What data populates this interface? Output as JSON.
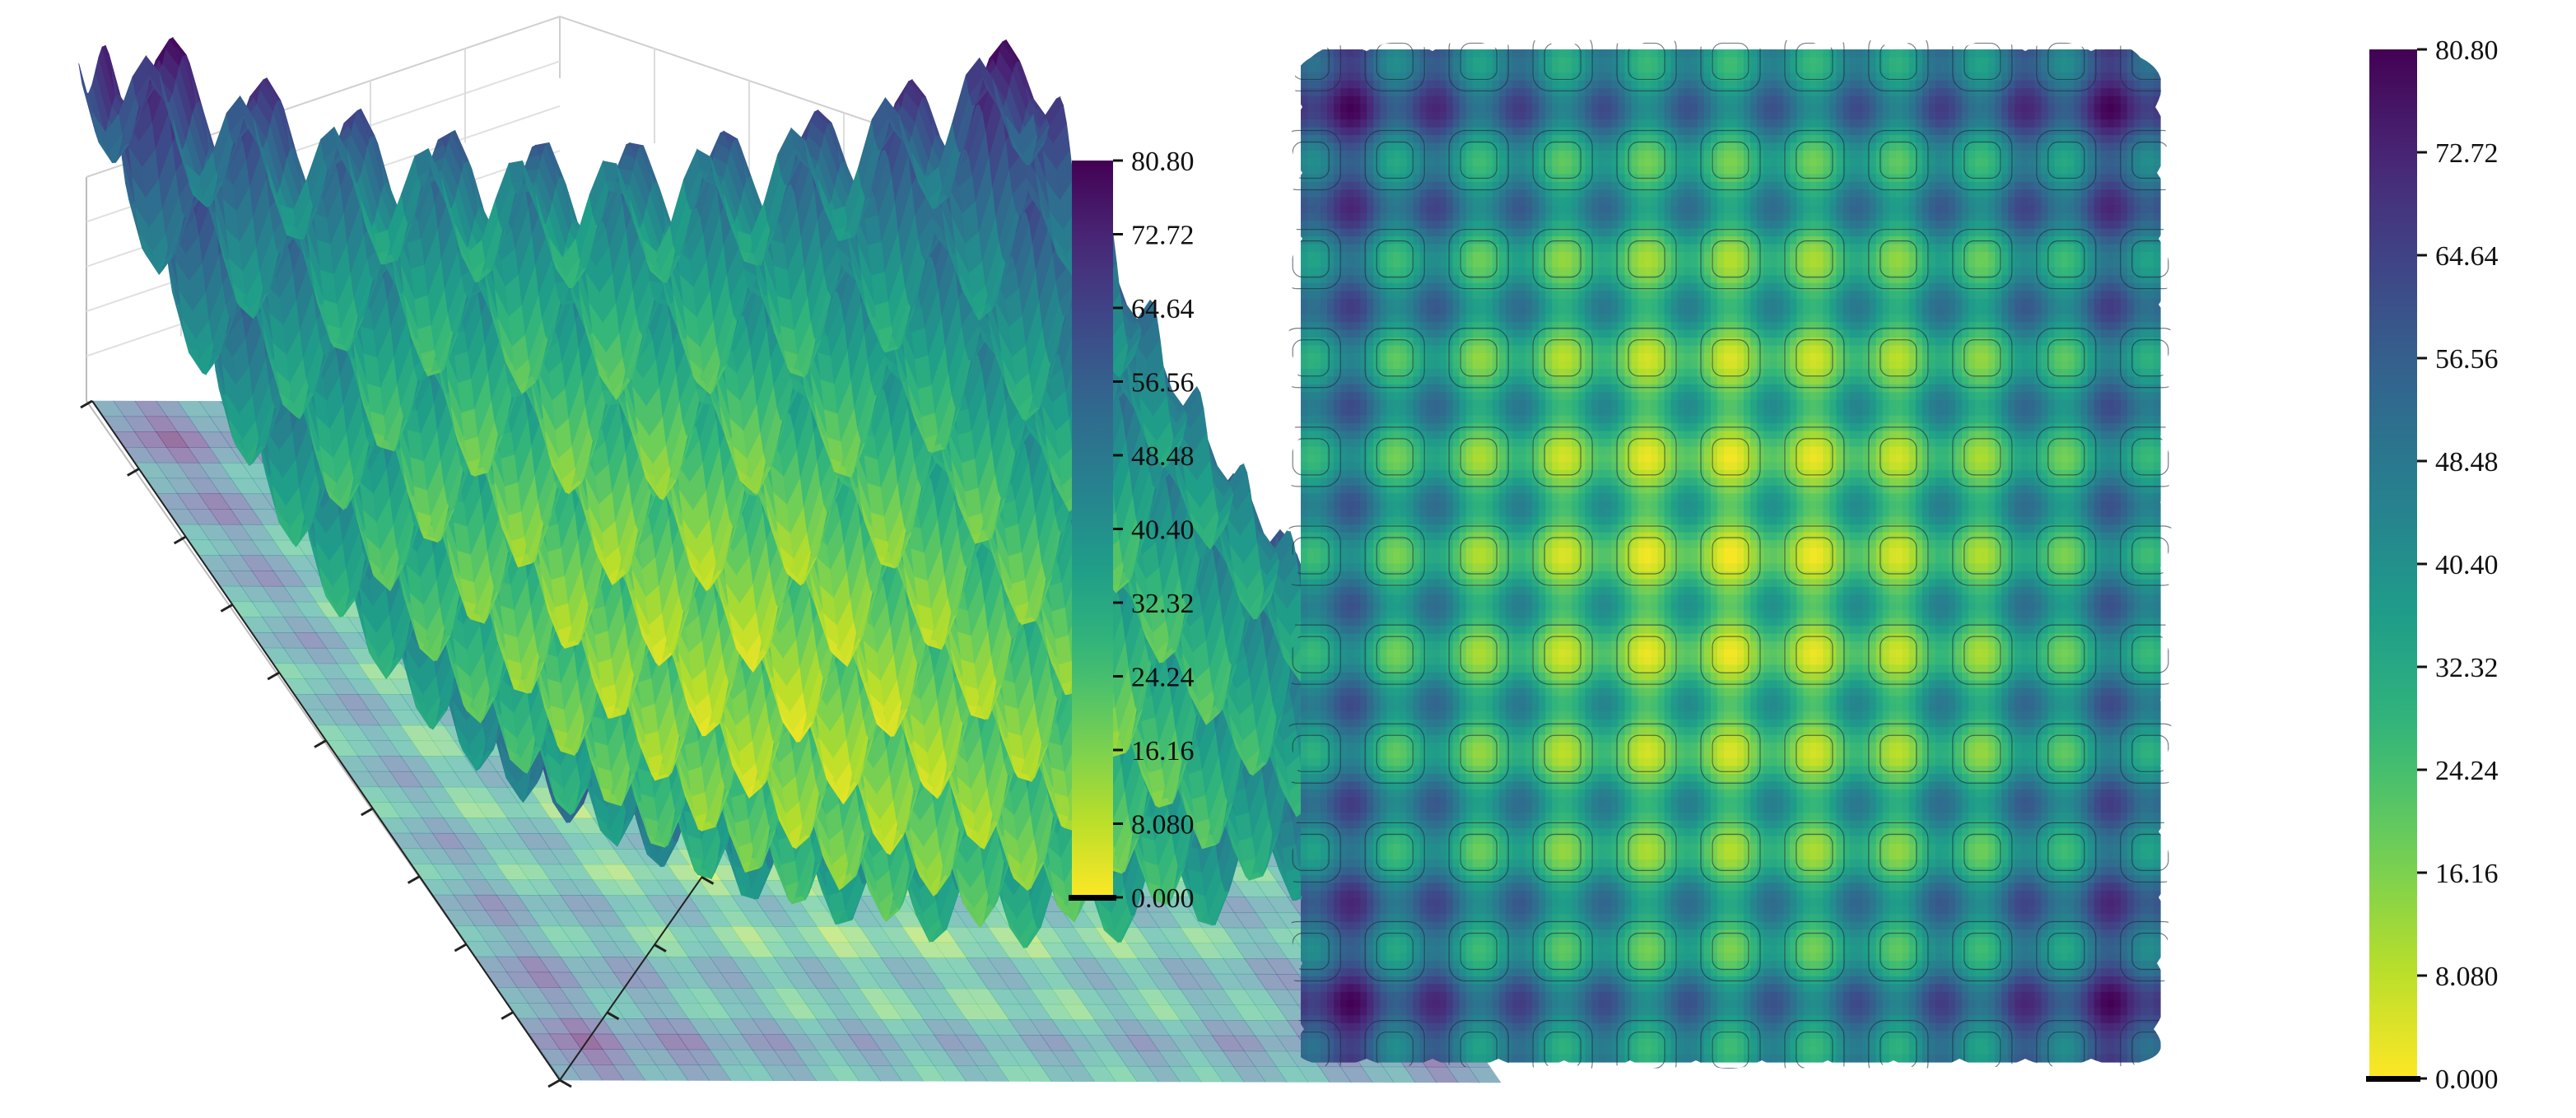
{
  "chart_data": [
    {
      "type": "surface3d",
      "title": "",
      "function": "rastrigin",
      "params": {
        "A": 10,
        "dims": 2
      },
      "x_range": [
        -5.12,
        5.12
      ],
      "y_range": [
        -5.12,
        5.12
      ],
      "zlim": [
        0,
        80.8
      ],
      "colormap": "viridis_r",
      "floor_projection": "contourf",
      "colorbar": {
        "min": 0,
        "max": 80.8,
        "ticks": [
          "80.80",
          "72.72",
          "64.64",
          "56.56",
          "48.48",
          "40.40",
          "32.32",
          "24.24",
          "16.16",
          "8.080",
          "0.000"
        ]
      }
    },
    {
      "type": "heatmap",
      "title": "",
      "function": "rastrigin",
      "params": {
        "A": 10,
        "dims": 2
      },
      "x_range": [
        -5.12,
        5.12
      ],
      "y_range": [
        -5.12,
        5.12
      ],
      "colormap": "viridis_r",
      "contours": true,
      "colorbar": {
        "min": 0,
        "max": 80.8,
        "ticks": [
          "80.80",
          "72.72",
          "64.64",
          "56.56",
          "48.48",
          "40.40",
          "32.32",
          "24.24",
          "16.16",
          "8.080",
          "0.000"
        ]
      }
    }
  ],
  "colors": {
    "viridis": [
      "#440154",
      "#482878",
      "#3e4989",
      "#31688e",
      "#26828e",
      "#1f9e89",
      "#35b779",
      "#6ece58",
      "#b5de2b",
      "#fde725"
    ],
    "axis": "#111111",
    "grid": "#cfcfcf"
  }
}
